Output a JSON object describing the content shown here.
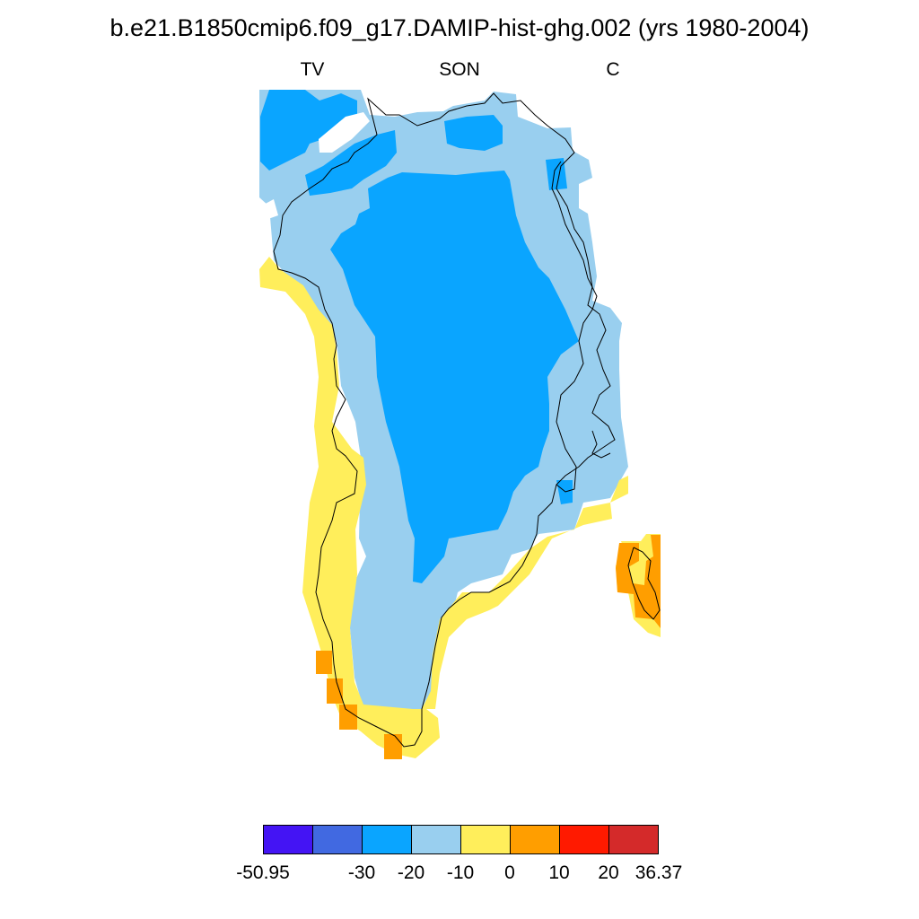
{
  "title": "b.e21.B1850cmip6.f09_g17.DAMIP-hist-ghg.002 (yrs 1980-2004)",
  "left_label": "TV",
  "center_label": "SON",
  "right_label": "C",
  "colors": {
    "c1": "#4414f4",
    "c2": "#4169e1",
    "c3": "#0aa5ff",
    "c4": "#99cfef",
    "c5": "#ffee5b",
    "c6": "#ff9e00",
    "c7": "#ff1a00",
    "c8": "#d42a2a",
    "coast": "#000000"
  },
  "colorbar": {
    "colors": [
      "#4414f4",
      "#4169e1",
      "#0aa5ff",
      "#99cfef",
      "#ffee5b",
      "#ff9e00",
      "#ff1a00",
      "#d42a2a"
    ],
    "labels": [
      "-50.95",
      "-30",
      "-20",
      "-10",
      "0",
      "10",
      "20",
      "36.37"
    ]
  }
}
